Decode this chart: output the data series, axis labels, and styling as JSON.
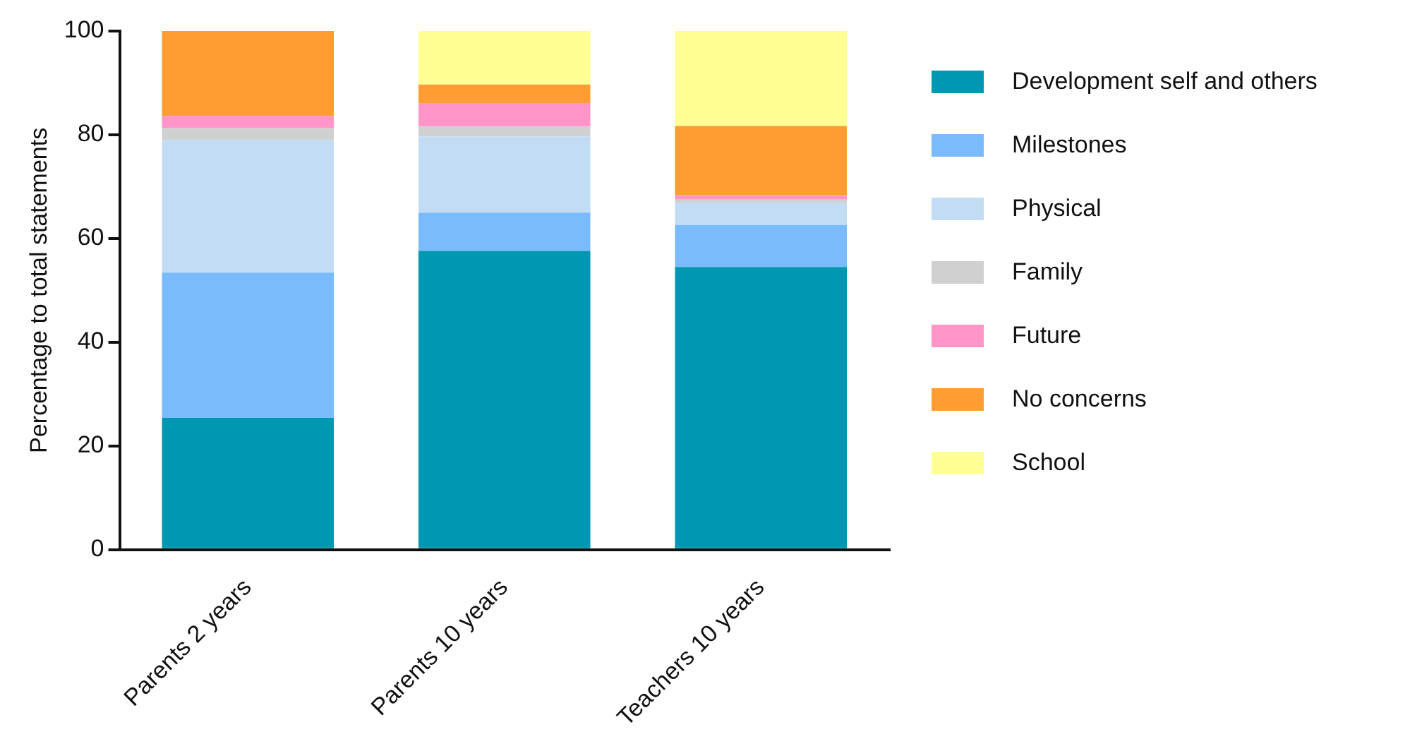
{
  "chart_data": {
    "type": "bar",
    "stacked": true,
    "ylabel": "Percentage to total statements",
    "categories": [
      "Parents 2 years",
      "Parents 10 years",
      "Teachers 10 years"
    ],
    "series": [
      {
        "name": "Development self and others",
        "color": "#0097b2",
        "values": [
          25.4,
          57.6,
          54.5
        ]
      },
      {
        "name": "Milestones",
        "color": "#7abcfb",
        "values": [
          28.0,
          7.4,
          8.1
        ]
      },
      {
        "name": "Physical",
        "color": "#c2dcf3",
        "values": [
          25.6,
          14.7,
          4.3
        ]
      },
      {
        "name": "Family",
        "color": "#d0d0d0",
        "values": [
          2.3,
          1.9,
          0.6
        ]
      },
      {
        "name": "Future",
        "color": "#ff95c8",
        "values": [
          2.3,
          4.4,
          0.9
        ]
      },
      {
        "name": "No concerns",
        "color": "#ff9d32",
        "values": [
          16.4,
          3.7,
          13.3
        ]
      },
      {
        "name": "School",
        "color": "#ffff96",
        "values": [
          0,
          10.3,
          18.3
        ]
      }
    ],
    "ylim": [
      0,
      100
    ],
    "yticks": [
      0,
      20,
      40,
      60,
      80,
      100
    ],
    "grid": false,
    "legend": "right"
  }
}
